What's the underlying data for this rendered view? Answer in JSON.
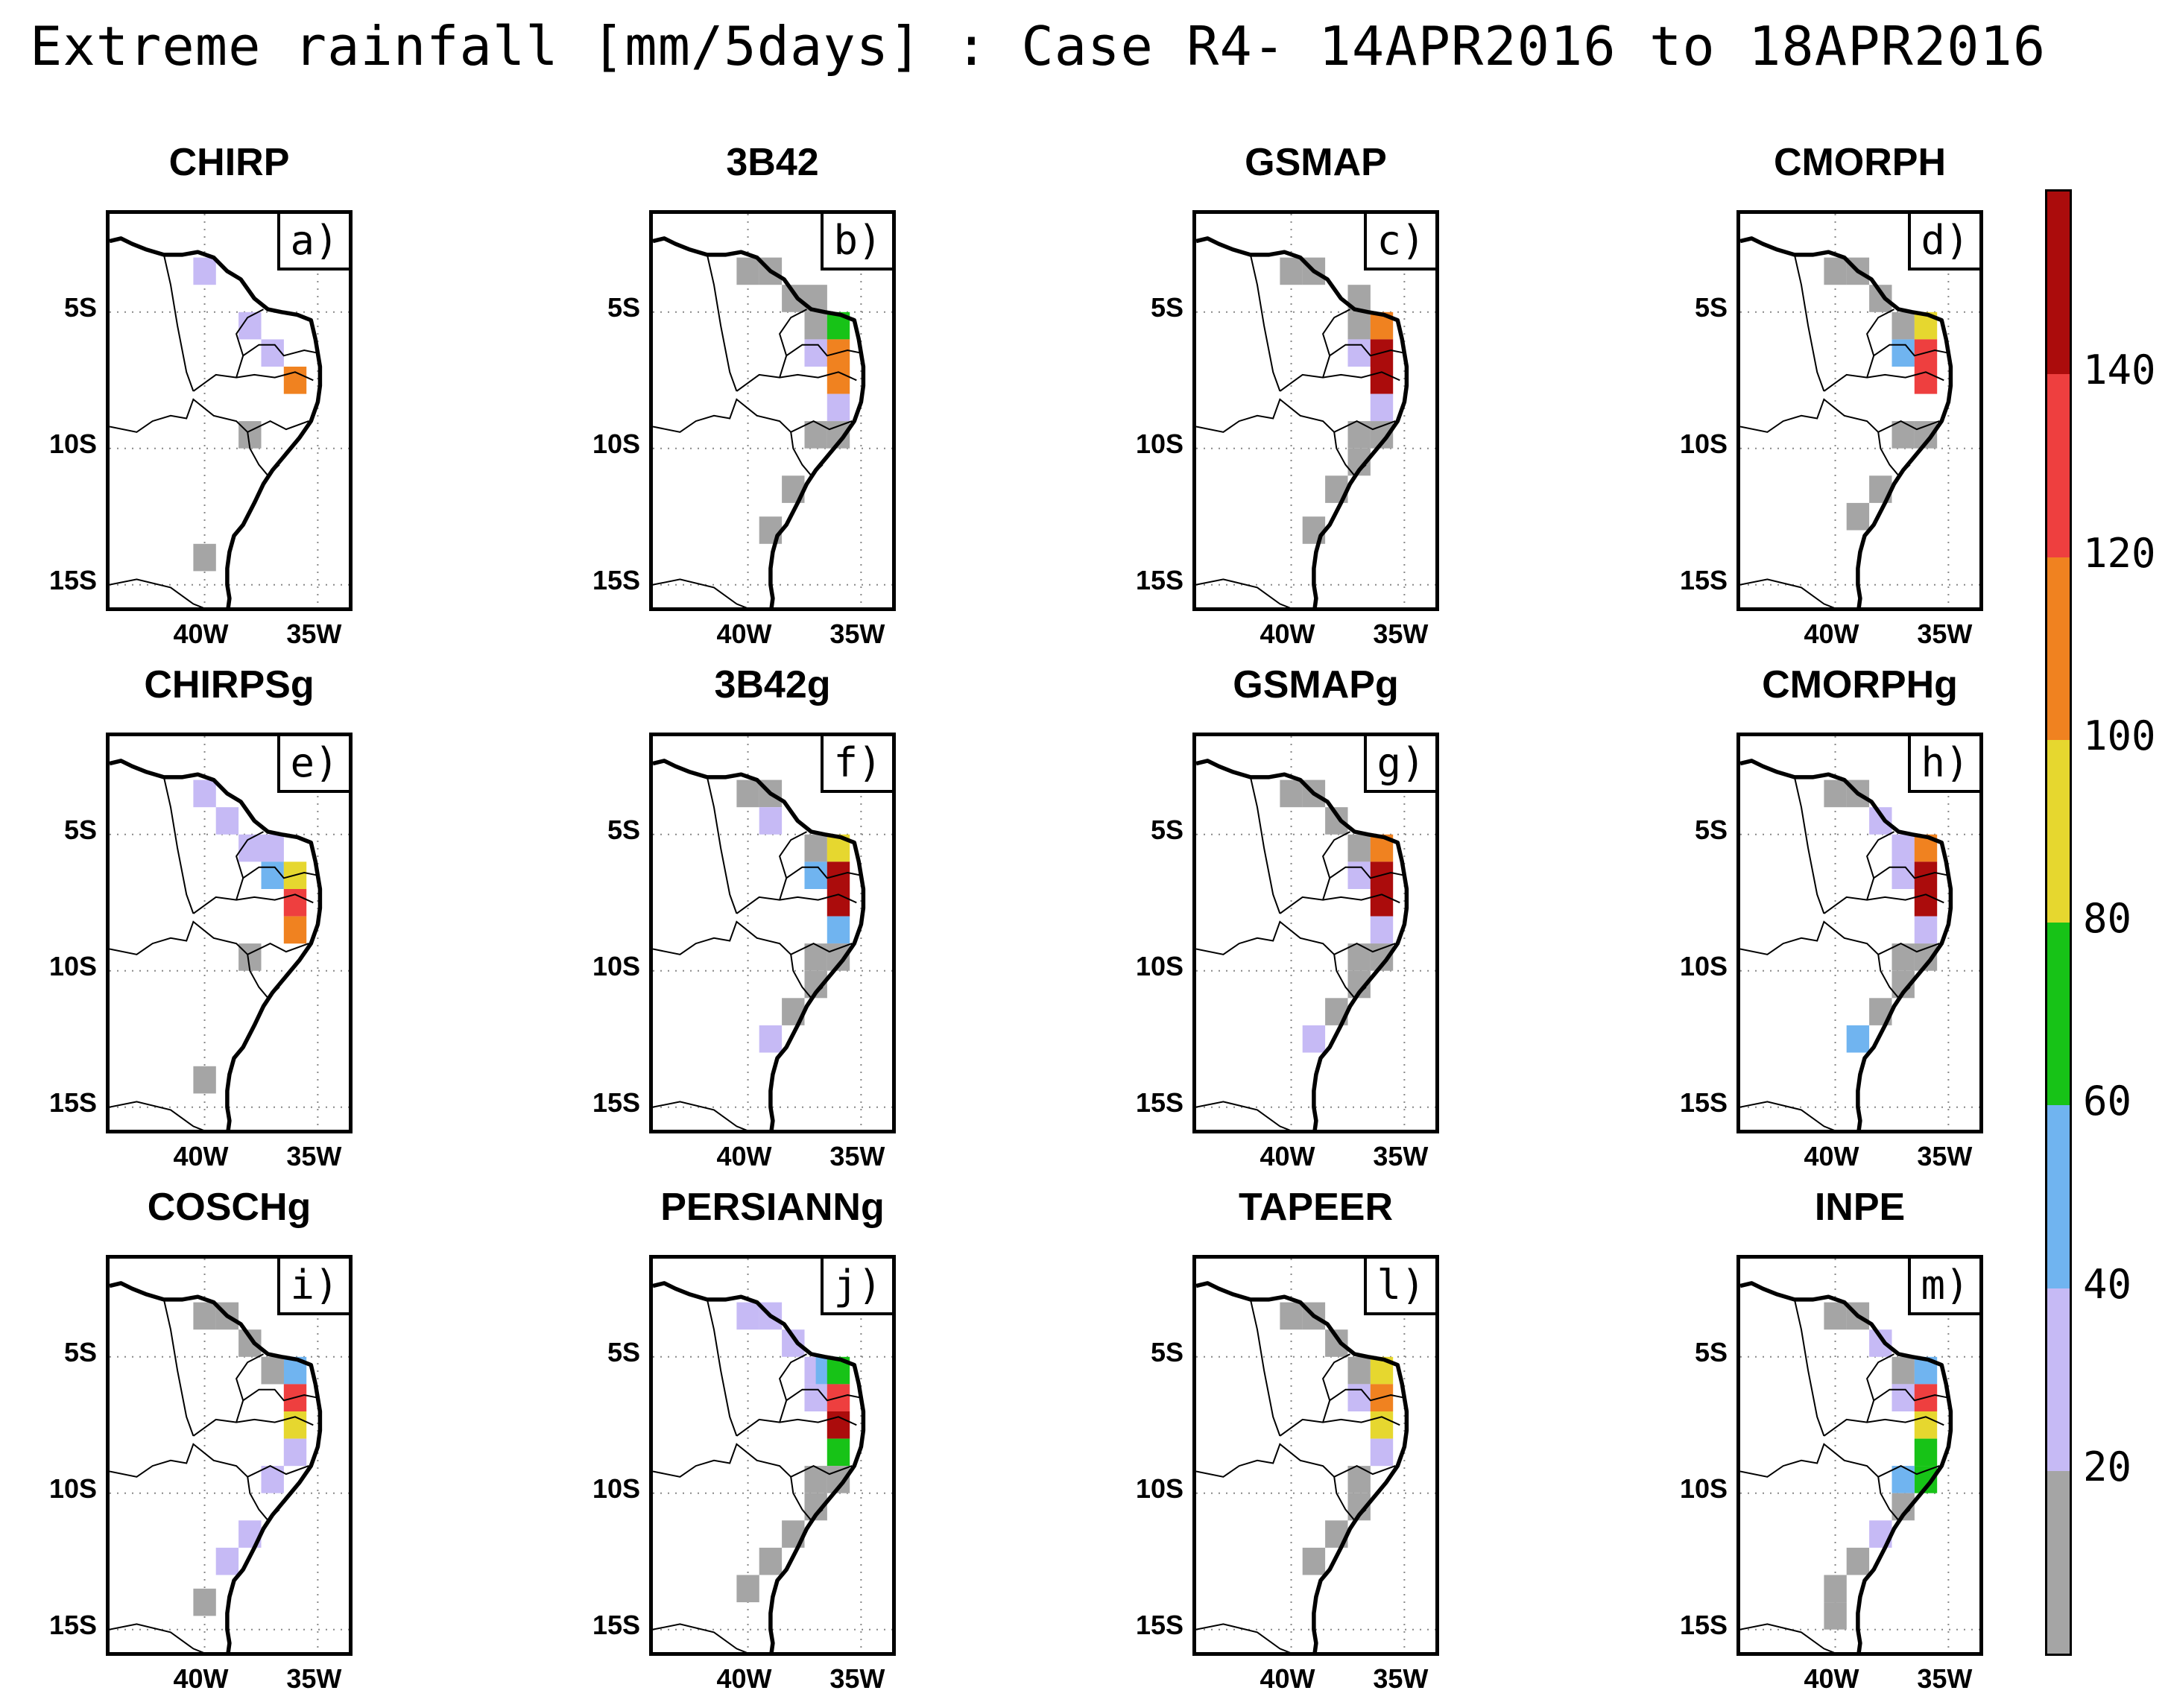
{
  "title": "Extreme rainfall [mm/5days] : Case R4- 14APR2016 to 18APR2016",
  "axes": {
    "yticks": [
      "5S",
      "10S",
      "15S"
    ],
    "xticks": [
      "40W",
      "35W"
    ]
  },
  "colors": {
    "c0": "#a5a5a5",
    "c20": "#c6baf5",
    "c40": "#70b4f0",
    "c60": "#17c317",
    "c80": "#e6d72f",
    "c100": "#f08220",
    "c120": "#ee3f3f",
    "c140": "#ab0c0c"
  },
  "colorbar": {
    "labels": [
      "20",
      "40",
      "60",
      "80",
      "100",
      "120",
      "140"
    ],
    "levels": [
      {
        "min": 0,
        "max": 20,
        "color": "#a5a5a5"
      },
      {
        "min": 20,
        "max": 40,
        "color": "#c6baf5"
      },
      {
        "min": 40,
        "max": 60,
        "color": "#70b4f0"
      },
      {
        "min": 60,
        "max": 80,
        "color": "#17c317"
      },
      {
        "min": 80,
        "max": 100,
        "color": "#e6d72f"
      },
      {
        "min": 100,
        "max": 120,
        "color": "#f08220"
      },
      {
        "min": 120,
        "max": 140,
        "color": "#ee3f3f"
      },
      {
        "min": 140,
        "max": 160,
        "color": "#ab0c0c"
      }
    ]
  },
  "panels": [
    {
      "name": "CHIRP",
      "label": "a)",
      "cells": [
        [
          -40,
          -3.5,
          "c20"
        ],
        [
          -38,
          -5.5,
          "c20"
        ],
        [
          -37,
          -6.5,
          "c20"
        ],
        [
          -36,
          -7.5,
          "c100"
        ],
        [
          -38,
          -9.5,
          "c0"
        ],
        [
          -40,
          -14,
          "c0"
        ]
      ]
    },
    {
      "name": "3B42",
      "label": "b)",
      "cells": [
        [
          -40,
          -3.5,
          "c0"
        ],
        [
          -39,
          -3.5,
          "c0"
        ],
        [
          -38,
          -4.5,
          "c0"
        ],
        [
          -37,
          -4.5,
          "c0"
        ],
        [
          -37,
          -5.5,
          "c0"
        ],
        [
          -36,
          -5.5,
          "c60"
        ],
        [
          -37,
          -6.5,
          "c20"
        ],
        [
          -36,
          -6.5,
          "c100"
        ],
        [
          -36,
          -7.5,
          "c100"
        ],
        [
          -36,
          -8.5,
          "c20"
        ],
        [
          -37,
          -9.5,
          "c0"
        ],
        [
          -36,
          -9.5,
          "c0"
        ],
        [
          -38,
          -11.5,
          "c0"
        ],
        [
          -39,
          -13,
          "c0"
        ]
      ]
    },
    {
      "name": "GSMAP",
      "label": "c)",
      "cells": [
        [
          -40,
          -3.5,
          "c0"
        ],
        [
          -39,
          -3.5,
          "c0"
        ],
        [
          -37,
          -4.5,
          "c0"
        ],
        [
          -37,
          -5.5,
          "c0"
        ],
        [
          -36,
          -5.5,
          "c100"
        ],
        [
          -37,
          -6.5,
          "c20"
        ],
        [
          -36,
          -6.5,
          "c140"
        ],
        [
          -36,
          -7.5,
          "c140"
        ],
        [
          -36,
          -8.5,
          "c20"
        ],
        [
          -37,
          -9.5,
          "c0"
        ],
        [
          -36,
          -9.5,
          "c0"
        ],
        [
          -37,
          -10.5,
          "c0"
        ],
        [
          -38,
          -11.5,
          "c0"
        ],
        [
          -39,
          -13,
          "c0"
        ]
      ]
    },
    {
      "name": "CMORPH",
      "label": "d)",
      "cells": [
        [
          -40,
          -3.5,
          "c0"
        ],
        [
          -39,
          -3.5,
          "c0"
        ],
        [
          -38,
          -4.5,
          "c0"
        ],
        [
          -37,
          -5.5,
          "c0"
        ],
        [
          -36,
          -5.5,
          "c80"
        ],
        [
          -37,
          -6.5,
          "c40"
        ],
        [
          -36,
          -6.5,
          "c120"
        ],
        [
          -36,
          -7.5,
          "c120"
        ],
        [
          -36,
          -9.5,
          "c0"
        ],
        [
          -37,
          -9.5,
          "c0"
        ],
        [
          -38,
          -11.5,
          "c0"
        ],
        [
          -39,
          -12.5,
          "c0"
        ]
      ]
    },
    {
      "name": "CHIRPSg",
      "label": "e)",
      "cells": [
        [
          -40,
          -3.5,
          "c20"
        ],
        [
          -39,
          -4.5,
          "c20"
        ],
        [
          -38,
          -5.5,
          "c20"
        ],
        [
          -37,
          -5.5,
          "c20"
        ],
        [
          -37,
          -6.5,
          "c40"
        ],
        [
          -36,
          -6.5,
          "c80"
        ],
        [
          -36,
          -7.5,
          "c120"
        ],
        [
          -36,
          -8.5,
          "c100"
        ],
        [
          -38,
          -9.5,
          "c0"
        ],
        [
          -40,
          -14,
          "c0"
        ]
      ]
    },
    {
      "name": "3B42g",
      "label": "f)",
      "cells": [
        [
          -40,
          -3.5,
          "c0"
        ],
        [
          -39,
          -3.5,
          "c0"
        ],
        [
          -39,
          -4.5,
          "c20"
        ],
        [
          -37,
          -5.5,
          "c0"
        ],
        [
          -36,
          -5.5,
          "c80"
        ],
        [
          -37,
          -6.5,
          "c40"
        ],
        [
          -36,
          -6.5,
          "c140"
        ],
        [
          -36,
          -7.5,
          "c140"
        ],
        [
          -36,
          -8.5,
          "c40"
        ],
        [
          -37,
          -9.5,
          "c0"
        ],
        [
          -36,
          -9.5,
          "c0"
        ],
        [
          -37,
          -10.5,
          "c0"
        ],
        [
          -38,
          -11.5,
          "c0"
        ],
        [
          -39,
          -12.5,
          "c20"
        ]
      ]
    },
    {
      "name": "GSMAPg",
      "label": "g)",
      "cells": [
        [
          -40,
          -3.5,
          "c0"
        ],
        [
          -39,
          -3.5,
          "c0"
        ],
        [
          -38,
          -4.5,
          "c0"
        ],
        [
          -37,
          -5.5,
          "c0"
        ],
        [
          -36,
          -5.5,
          "c100"
        ],
        [
          -37,
          -6.5,
          "c20"
        ],
        [
          -36,
          -6.5,
          "c140"
        ],
        [
          -36,
          -7.5,
          "c140"
        ],
        [
          -36,
          -8.5,
          "c20"
        ],
        [
          -37,
          -9.5,
          "c0"
        ],
        [
          -36,
          -9.5,
          "c0"
        ],
        [
          -37,
          -10.5,
          "c0"
        ],
        [
          -38,
          -11.5,
          "c0"
        ],
        [
          -39,
          -12.5,
          "c20"
        ]
      ]
    },
    {
      "name": "CMORPHg",
      "label": "h)",
      "cells": [
        [
          -40,
          -3.5,
          "c0"
        ],
        [
          -39,
          -3.5,
          "c0"
        ],
        [
          -38,
          -4.5,
          "c20"
        ],
        [
          -37,
          -5.5,
          "c20"
        ],
        [
          -36,
          -5.5,
          "c100"
        ],
        [
          -37,
          -6.5,
          "c20"
        ],
        [
          -36,
          -6.5,
          "c140"
        ],
        [
          -36,
          -7.5,
          "c140"
        ],
        [
          -36,
          -8.5,
          "c20"
        ],
        [
          -37,
          -9.5,
          "c0"
        ],
        [
          -36,
          -9.5,
          "c0"
        ],
        [
          -37,
          -10.5,
          "c0"
        ],
        [
          -38,
          -11.5,
          "c0"
        ],
        [
          -39,
          -12.5,
          "c40"
        ]
      ]
    },
    {
      "name": "COSCHg",
      "label": "i)",
      "cells": [
        [
          -40,
          -3.5,
          "c0"
        ],
        [
          -39,
          -3.5,
          "c0"
        ],
        [
          -38,
          -4.5,
          "c0"
        ],
        [
          -37,
          -5.5,
          "c0"
        ],
        [
          -36,
          -5.5,
          "c40"
        ],
        [
          -37,
          -5.5,
          "c0"
        ],
        [
          -36,
          -6.5,
          "c120"
        ],
        [
          -36,
          -7.5,
          "c80"
        ],
        [
          -36,
          -8.5,
          "c20"
        ],
        [
          -37,
          -9.5,
          "c20"
        ],
        [
          -38,
          -11.5,
          "c20"
        ],
        [
          -39,
          -12.5,
          "c20"
        ],
        [
          -40,
          -14,
          "c0"
        ]
      ]
    },
    {
      "name": "PERSIANNg",
      "label": "j)",
      "cells": [
        [
          -40,
          -3.5,
          "c20"
        ],
        [
          -39,
          -3.5,
          "c20"
        ],
        [
          -38,
          -4.5,
          "c20"
        ],
        [
          -37,
          -5.5,
          "c20"
        ],
        [
          -36.5,
          -5.5,
          "c40"
        ],
        [
          -36,
          -5.5,
          "c60"
        ],
        [
          -37,
          -6.5,
          "c20"
        ],
        [
          -36,
          -6.5,
          "c120"
        ],
        [
          -36,
          -7.5,
          "c140"
        ],
        [
          -36,
          -8.5,
          "c60"
        ],
        [
          -37,
          -9.5,
          "c0"
        ],
        [
          -36,
          -9.5,
          "c0"
        ],
        [
          -37,
          -10.5,
          "c0"
        ],
        [
          -38,
          -11.5,
          "c0"
        ],
        [
          -39,
          -12.5,
          "c0"
        ],
        [
          -40,
          -13.5,
          "c0"
        ]
      ]
    },
    {
      "name": "TAPEER",
      "label": "l)",
      "cells": [
        [
          -40,
          -3.5,
          "c0"
        ],
        [
          -39,
          -3.5,
          "c0"
        ],
        [
          -38,
          -4.5,
          "c0"
        ],
        [
          -37,
          -5.5,
          "c0"
        ],
        [
          -36,
          -5.5,
          "c80"
        ],
        [
          -37,
          -6.5,
          "c20"
        ],
        [
          -36,
          -6.5,
          "c100"
        ],
        [
          -36,
          -7.5,
          "c80"
        ],
        [
          -36,
          -8.5,
          "c20"
        ],
        [
          -37,
          -9.5,
          "c0"
        ],
        [
          -37,
          -10.5,
          "c0"
        ],
        [
          -38,
          -11.5,
          "c0"
        ],
        [
          -39,
          -12.5,
          "c0"
        ]
      ]
    },
    {
      "name": "INPE",
      "label": "m)",
      "cells": [
        [
          -40,
          -3.5,
          "c0"
        ],
        [
          -39,
          -3.5,
          "c0"
        ],
        [
          -38,
          -4.5,
          "c20"
        ],
        [
          -37,
          -5.5,
          "c0"
        ],
        [
          -36,
          -5.5,
          "c40"
        ],
        [
          -37,
          -6.5,
          "c20"
        ],
        [
          -36,
          -6.5,
          "c120"
        ],
        [
          -36,
          -7.5,
          "c80"
        ],
        [
          -36,
          -8.5,
          "c60"
        ],
        [
          -36,
          -9.5,
          "c60"
        ],
        [
          -37,
          -9.5,
          "c40"
        ],
        [
          -37,
          -10.5,
          "c0"
        ],
        [
          -38,
          -11.5,
          "c20"
        ],
        [
          -39,
          -12.5,
          "c0"
        ],
        [
          -40,
          -13.5,
          "c0"
        ],
        [
          -40,
          -14.5,
          "c0"
        ]
      ]
    }
  ]
}
